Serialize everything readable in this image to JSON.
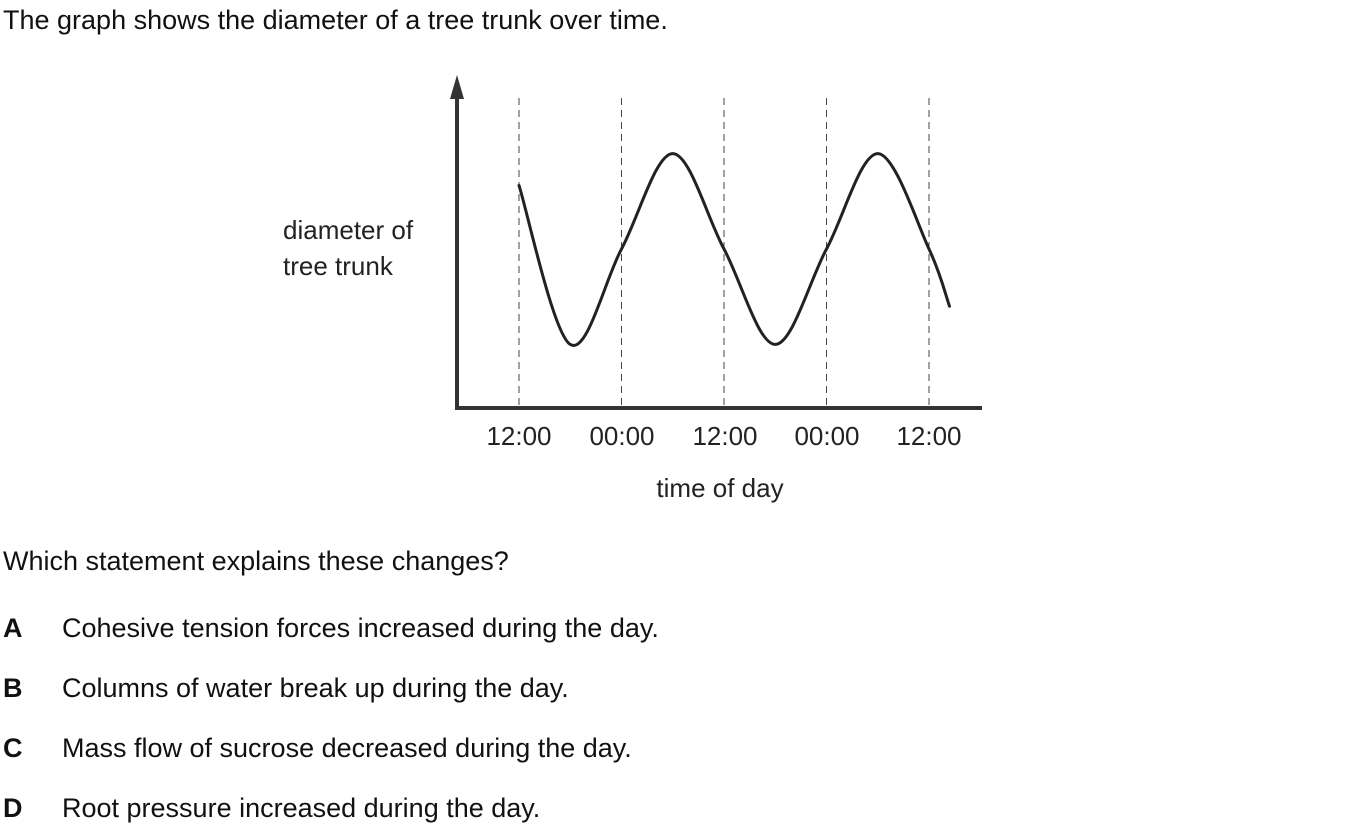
{
  "intro": "The graph shows the diameter of a tree trunk over time.",
  "chart_data": {
    "type": "line",
    "ylabel_lines": [
      "diameter of",
      "tree trunk"
    ],
    "xlabel": "time of day",
    "x_ticks": [
      "12:00",
      "00:00",
      "12:00",
      "00:00",
      "12:00"
    ],
    "series": [
      {
        "x": [
          0,
          0.5,
          1,
          1.5,
          2,
          2.5,
          3,
          3.5,
          4,
          4.2
        ],
        "values": [
          0.7,
          0.2,
          0.5,
          0.8,
          0.5,
          0.2,
          0.5,
          0.8,
          0.5,
          0.32
        ]
      }
    ],
    "grid": "vertical dashed lines at each x tick",
    "line_color": "#222222"
  },
  "question": "Which statement explains these changes?",
  "options": [
    {
      "letter": "A",
      "text": "Cohesive tension forces increased during the day."
    },
    {
      "letter": "B",
      "text": "Columns of water break up during the day."
    },
    {
      "letter": "C",
      "text": "Mass flow of sucrose decreased during the day."
    },
    {
      "letter": "D",
      "text": "Root pressure increased during the day."
    }
  ]
}
